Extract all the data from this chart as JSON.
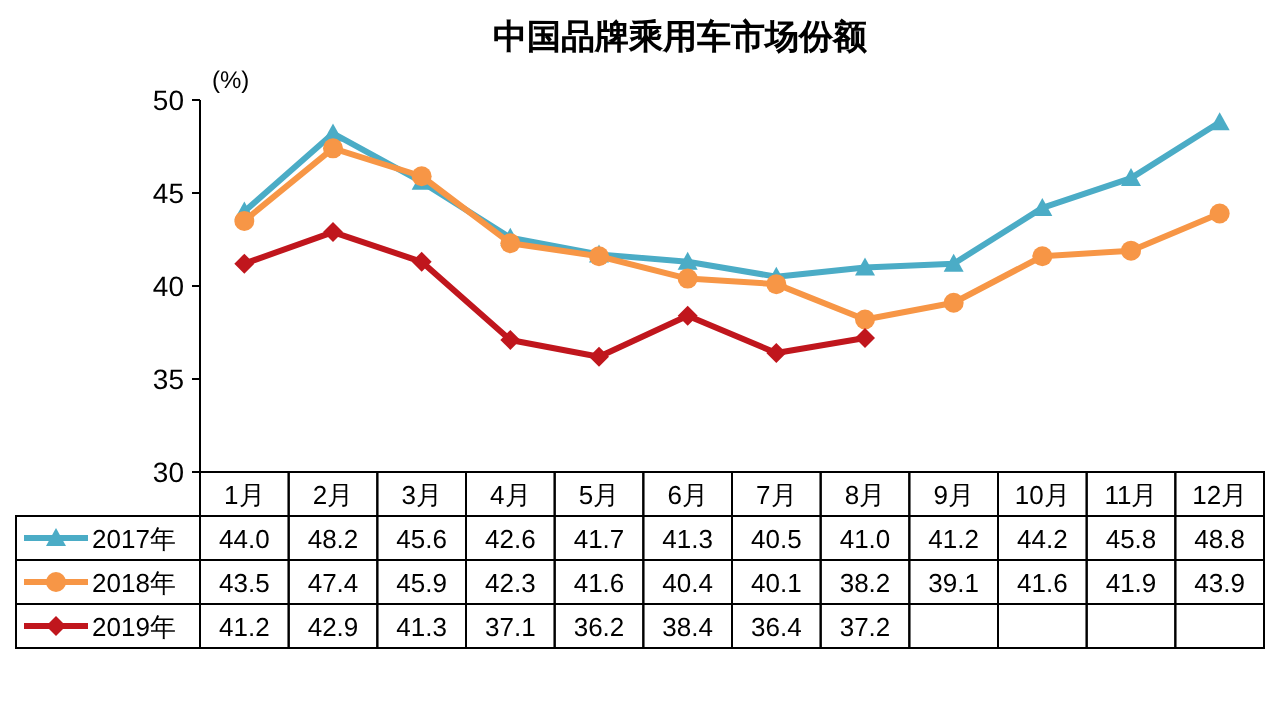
{
  "chart_data": {
    "type": "line",
    "title": "中国品牌乘用车市场份额",
    "ylabel": "(%)",
    "categories": [
      "1月",
      "2月",
      "3月",
      "4月",
      "5月",
      "6月",
      "7月",
      "8月",
      "9月",
      "10月",
      "11月",
      "12月"
    ],
    "ylim": [
      30,
      50
    ],
    "yticks": [
      30,
      35,
      40,
      45,
      50
    ],
    "legend": "bottom",
    "series": [
      {
        "name": "2017年",
        "color": "#4bacc6",
        "marker": "triangle",
        "values": [
          44.0,
          48.2,
          45.6,
          42.6,
          41.7,
          41.3,
          40.5,
          41.0,
          41.2,
          44.2,
          45.8,
          48.8
        ],
        "value_labels": [
          "44.0",
          "48.2",
          "45.6",
          "42.6",
          "41.7",
          "41.3",
          "40.5",
          "41.0",
          "41.2",
          "44.2",
          "45.8",
          "48.8"
        ]
      },
      {
        "name": "2018年",
        "color": "#f79646",
        "marker": "circle",
        "values": [
          43.5,
          47.4,
          45.9,
          42.3,
          41.6,
          40.4,
          40.1,
          38.2,
          39.1,
          41.6,
          41.9,
          43.9
        ],
        "value_labels": [
          "43.5",
          "47.4",
          "45.9",
          "42.3",
          "41.6",
          "40.4",
          "40.1",
          "38.2",
          "39.1",
          "41.6",
          "41.9",
          "43.9"
        ]
      },
      {
        "name": "2019年",
        "color": "#c0161d",
        "marker": "diamond",
        "values": [
          41.2,
          42.9,
          41.3,
          37.1,
          36.2,
          38.4,
          36.4,
          37.2,
          null,
          null,
          null,
          null
        ],
        "value_labels": [
          "41.2",
          "42.9",
          "41.3",
          "37.1",
          "36.2",
          "38.4",
          "36.4",
          "37.2",
          null,
          null,
          null,
          null
        ]
      }
    ]
  }
}
